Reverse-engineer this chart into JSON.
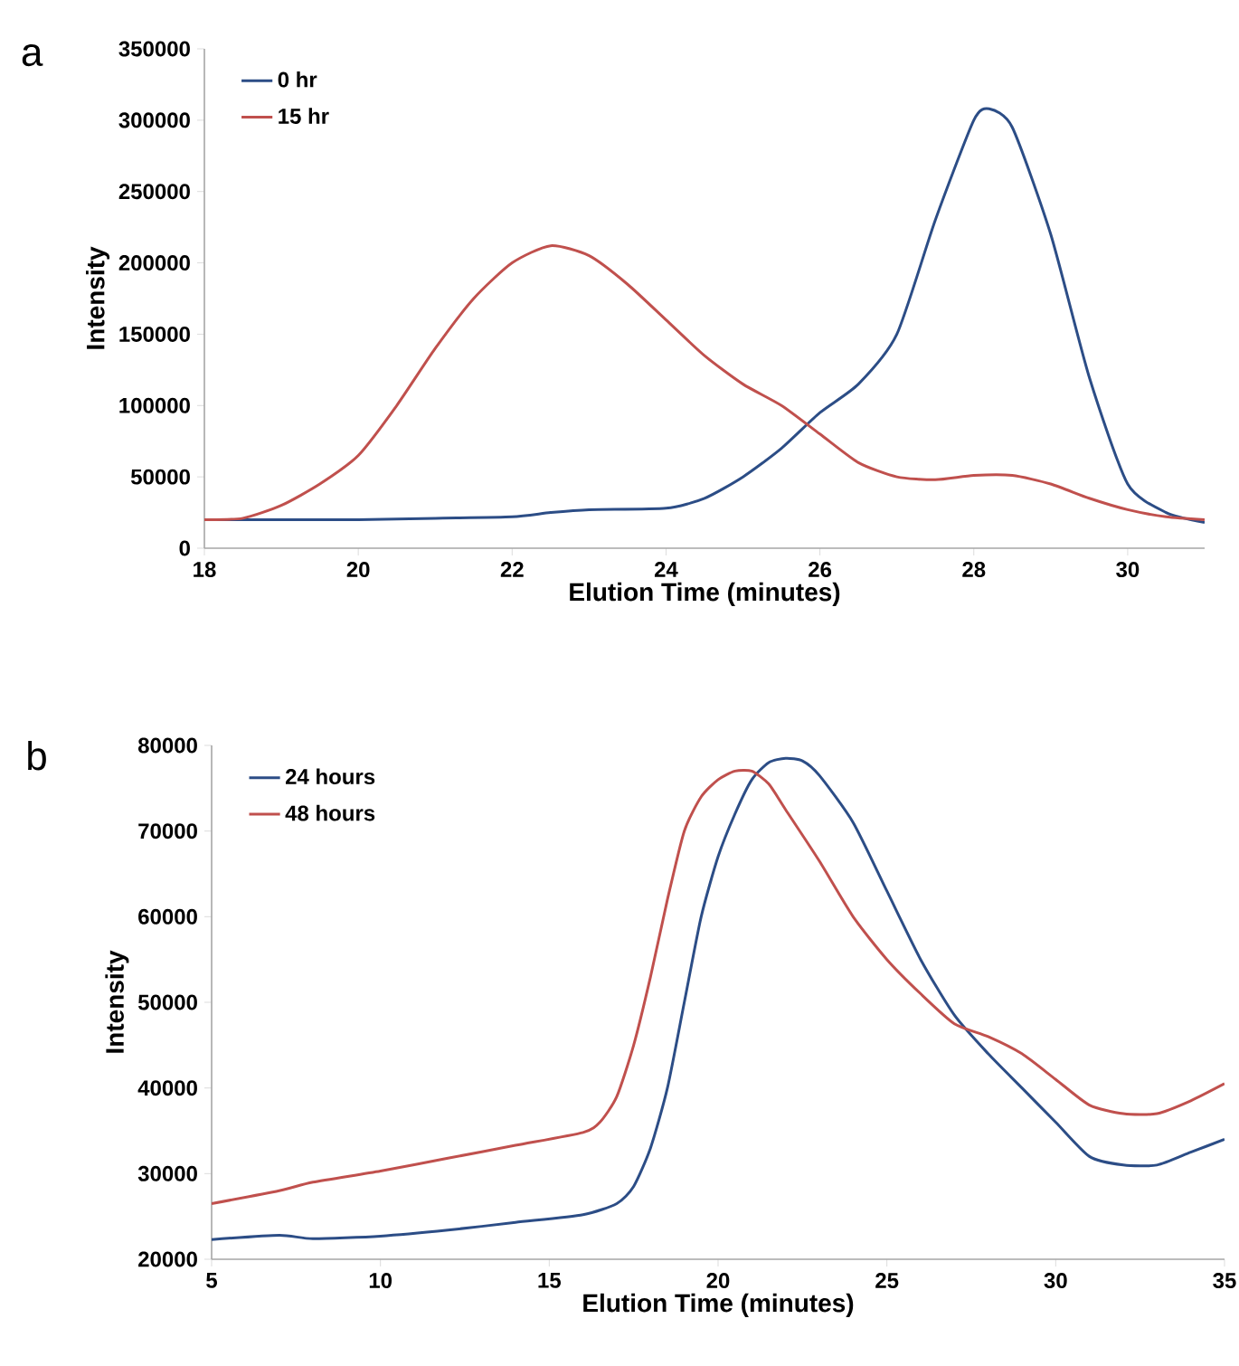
{
  "chart_data": [
    {
      "type": "line",
      "title": "a",
      "xlabel": "Elution Time (minutes)",
      "ylabel": "Intensity",
      "xlim": [
        18,
        31
      ],
      "ylim": [
        0,
        350000
      ],
      "xticks": [
        18,
        20,
        22,
        24,
        26,
        28,
        30
      ],
      "yticks": [
        0,
        50000,
        100000,
        150000,
        200000,
        250000,
        300000,
        350000
      ],
      "legend": "top left",
      "grid": false,
      "marker": "none",
      "series": [
        {
          "name": "0 hr",
          "color": "#2c4d86",
          "x": [
            18,
            19,
            20,
            21,
            22,
            22.5,
            23,
            24,
            24.5,
            25,
            25.5,
            26,
            26.5,
            27,
            27.5,
            28,
            28.2,
            28.5,
            29,
            29.5,
            30,
            30.5,
            31
          ],
          "values": [
            20000,
            20000,
            20000,
            21000,
            22000,
            25000,
            27000,
            28000,
            35000,
            50000,
            70000,
            95000,
            115000,
            150000,
            230000,
            300000,
            308000,
            295000,
            220000,
            120000,
            45000,
            25000,
            18000
          ]
        },
        {
          "name": "15 hr",
          "color": "#c0504d",
          "x": [
            18,
            18.5,
            19,
            19.5,
            20,
            20.5,
            21,
            21.5,
            22,
            22.5,
            23,
            23.5,
            24,
            24.5,
            25,
            25.5,
            26,
            26.5,
            27,
            27.5,
            28,
            28.5,
            29,
            29.5,
            30,
            30.5,
            31
          ],
          "values": [
            20000,
            21000,
            30000,
            45000,
            65000,
            100000,
            140000,
            175000,
            200000,
            212000,
            205000,
            185000,
            160000,
            135000,
            115000,
            100000,
            80000,
            60000,
            50000,
            48000,
            51000,
            51000,
            45000,
            35000,
            27000,
            22000,
            20000
          ]
        }
      ]
    },
    {
      "type": "line",
      "title": "b",
      "xlabel": "Elution Time (minutes)",
      "ylabel": "Intensity",
      "xlim": [
        5,
        35
      ],
      "ylim": [
        20000,
        80000
      ],
      "xticks": [
        5,
        10,
        15,
        20,
        25,
        30,
        35
      ],
      "yticks": [
        20000,
        30000,
        40000,
        50000,
        60000,
        70000,
        80000
      ],
      "legend": "top left",
      "grid": false,
      "marker": "none",
      "series": [
        {
          "name": "24 hours",
          "color": "#2c4d86",
          "x": [
            5,
            7,
            8,
            10,
            12,
            14,
            16,
            17,
            17.5,
            18,
            18.5,
            19,
            19.5,
            20,
            20.5,
            21,
            21.5,
            22,
            22.5,
            23,
            24,
            25,
            26,
            27,
            28,
            29,
            30,
            31,
            32,
            33,
            34,
            35
          ],
          "values": [
            22300,
            22800,
            22400,
            22700,
            23400,
            24300,
            25200,
            26500,
            28500,
            33000,
            40000,
            50000,
            60000,
            67000,
            72000,
            76000,
            78000,
            78500,
            78200,
            76500,
            71000,
            63000,
            55000,
            48500,
            44000,
            40000,
            36000,
            32000,
            31000,
            31000,
            32500,
            34000
          ]
        },
        {
          "name": "48 hours",
          "color": "#c0504d",
          "x": [
            5,
            7,
            8,
            10,
            12,
            14,
            16,
            16.5,
            17,
            17.5,
            18,
            18.5,
            19,
            19.5,
            20,
            20.5,
            21,
            21.5,
            22,
            23,
            24,
            25,
            26,
            27,
            28,
            29,
            30,
            31,
            32,
            33,
            34,
            35
          ],
          "values": [
            26500,
            28000,
            29000,
            30300,
            31800,
            33300,
            34800,
            36000,
            39000,
            45000,
            53000,
            62000,
            70000,
            74000,
            76000,
            77000,
            77000,
            75500,
            72500,
            66500,
            60000,
            55000,
            51000,
            47500,
            46000,
            44000,
            41000,
            38000,
            37000,
            37000,
            38500,
            40500
          ]
        }
      ]
    }
  ]
}
